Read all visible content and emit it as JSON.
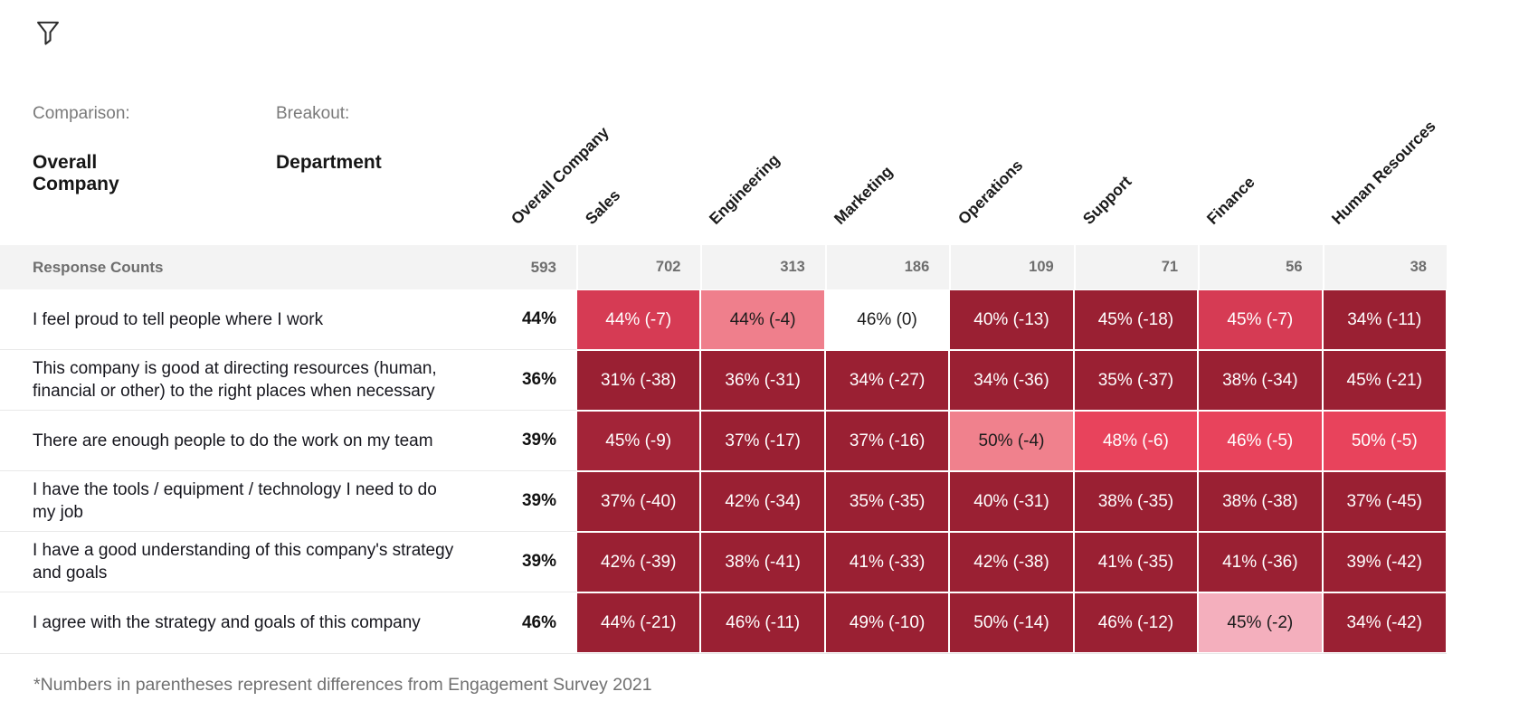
{
  "toolbar": {
    "filter_icon": "filter-funnel"
  },
  "controls": {
    "comparison_label": "Comparison:",
    "comparison_value": "Overall Company",
    "breakout_label": "Breakout:",
    "breakout_value": "Department"
  },
  "palette": {
    "dark_red": "#9A2033",
    "medium_dark_red": "#A32438",
    "medium_red": "#D63B54",
    "bright_red": "#E8435C",
    "salmon": "#F0818D",
    "light_pink": "#F4AFBD",
    "neutral": "#FFFFFF",
    "counts_band": "#f3f3f3"
  },
  "chart_data": {
    "type": "heatmap",
    "columns": [
      "Overall Company",
      "Sales",
      "Engineering",
      "Marketing",
      "Operations",
      "Support",
      "Finance",
      "Human Resources"
    ],
    "counts_label": "Response Counts",
    "response_counts": [
      "593",
      "702",
      "313",
      "186",
      "109",
      "71",
      "56",
      "38"
    ],
    "rows": [
      {
        "label": "I feel proud to tell people where I work",
        "overall": "44%",
        "cells": [
          {
            "text": "44% (-7)",
            "bg": "#D63B54",
            "fg": "#ffffff"
          },
          {
            "text": "44% (-4)",
            "bg": "#EF7F8C",
            "fg": "#1c1c1c"
          },
          {
            "text": "46% (0)",
            "bg": "#FFFFFF",
            "fg": "#1c1c1c"
          },
          {
            "text": "40% (-13)",
            "bg": "#9A2033",
            "fg": "#ffffff"
          },
          {
            "text": "45% (-18)",
            "bg": "#9A2033",
            "fg": "#ffffff"
          },
          {
            "text": "45% (-7)",
            "bg": "#D63B54",
            "fg": "#ffffff"
          },
          {
            "text": "34% (-11)",
            "bg": "#9A2033",
            "fg": "#ffffff"
          }
        ]
      },
      {
        "label": "This company is good at directing resources (human, financial or other) to the right places when necessary",
        "overall": "36%",
        "cells": [
          {
            "text": "31% (-38)",
            "bg": "#9A2033",
            "fg": "#ffffff"
          },
          {
            "text": "36% (-31)",
            "bg": "#9A2033",
            "fg": "#ffffff"
          },
          {
            "text": "34% (-27)",
            "bg": "#9A2033",
            "fg": "#ffffff"
          },
          {
            "text": "34% (-36)",
            "bg": "#9A2033",
            "fg": "#ffffff"
          },
          {
            "text": "35% (-37)",
            "bg": "#9A2033",
            "fg": "#ffffff"
          },
          {
            "text": "38% (-34)",
            "bg": "#9A2033",
            "fg": "#ffffff"
          },
          {
            "text": "45% (-21)",
            "bg": "#9A2033",
            "fg": "#ffffff"
          }
        ]
      },
      {
        "label": "There are enough people to do the work on my team",
        "overall": "39%",
        "cells": [
          {
            "text": "45% (-9)",
            "bg": "#A32438",
            "fg": "#ffffff"
          },
          {
            "text": "37% (-17)",
            "bg": "#9A2033",
            "fg": "#ffffff"
          },
          {
            "text": "37% (-16)",
            "bg": "#9A2033",
            "fg": "#ffffff"
          },
          {
            "text": "50% (-4)",
            "bg": "#F0818D",
            "fg": "#1c1c1c"
          },
          {
            "text": "48% (-6)",
            "bg": "#E8435C",
            "fg": "#ffffff"
          },
          {
            "text": "46% (-5)",
            "bg": "#E8435C",
            "fg": "#ffffff"
          },
          {
            "text": "50% (-5)",
            "bg": "#E8435C",
            "fg": "#ffffff"
          }
        ]
      },
      {
        "label": "I have the tools / equipment / technology I need to do my job",
        "overall": "39%",
        "cells": [
          {
            "text": "37% (-40)",
            "bg": "#9A2033",
            "fg": "#ffffff"
          },
          {
            "text": "42% (-34)",
            "bg": "#9A2033",
            "fg": "#ffffff"
          },
          {
            "text": "35% (-35)",
            "bg": "#9A2033",
            "fg": "#ffffff"
          },
          {
            "text": "40% (-31)",
            "bg": "#9A2033",
            "fg": "#ffffff"
          },
          {
            "text": "38% (-35)",
            "bg": "#9A2033",
            "fg": "#ffffff"
          },
          {
            "text": "38% (-38)",
            "bg": "#9A2033",
            "fg": "#ffffff"
          },
          {
            "text": "37% (-45)",
            "bg": "#9A2033",
            "fg": "#ffffff"
          }
        ]
      },
      {
        "label": "I have a good understanding of this company's strategy and goals",
        "overall": "39%",
        "cells": [
          {
            "text": "42% (-39)",
            "bg": "#9A2033",
            "fg": "#ffffff"
          },
          {
            "text": "38% (-41)",
            "bg": "#9A2033",
            "fg": "#ffffff"
          },
          {
            "text": "41% (-33)",
            "bg": "#9A2033",
            "fg": "#ffffff"
          },
          {
            "text": "42% (-38)",
            "bg": "#9A2033",
            "fg": "#ffffff"
          },
          {
            "text": "41% (-35)",
            "bg": "#9A2033",
            "fg": "#ffffff"
          },
          {
            "text": "41% (-36)",
            "bg": "#9A2033",
            "fg": "#ffffff"
          },
          {
            "text": "39% (-42)",
            "bg": "#9A2033",
            "fg": "#ffffff"
          }
        ]
      },
      {
        "label": "I agree with the strategy and goals of this company",
        "overall": "46%",
        "cells": [
          {
            "text": "44% (-21)",
            "bg": "#9A2033",
            "fg": "#ffffff"
          },
          {
            "text": "46% (-11)",
            "bg": "#9A2033",
            "fg": "#ffffff"
          },
          {
            "text": "49% (-10)",
            "bg": "#9A2033",
            "fg": "#ffffff"
          },
          {
            "text": "50% (-14)",
            "bg": "#9A2033",
            "fg": "#ffffff"
          },
          {
            "text": "46% (-12)",
            "bg": "#9A2033",
            "fg": "#ffffff"
          },
          {
            "text": "45% (-2)",
            "bg": "#F4AFBD",
            "fg": "#1c1c1c"
          },
          {
            "text": "34% (-42)",
            "bg": "#9A2033",
            "fg": "#ffffff"
          }
        ]
      }
    ],
    "footnote": "*Numbers in parentheses represent differences from Engagement Survey 2021",
    "legend_position": "none",
    "grid": false
  }
}
